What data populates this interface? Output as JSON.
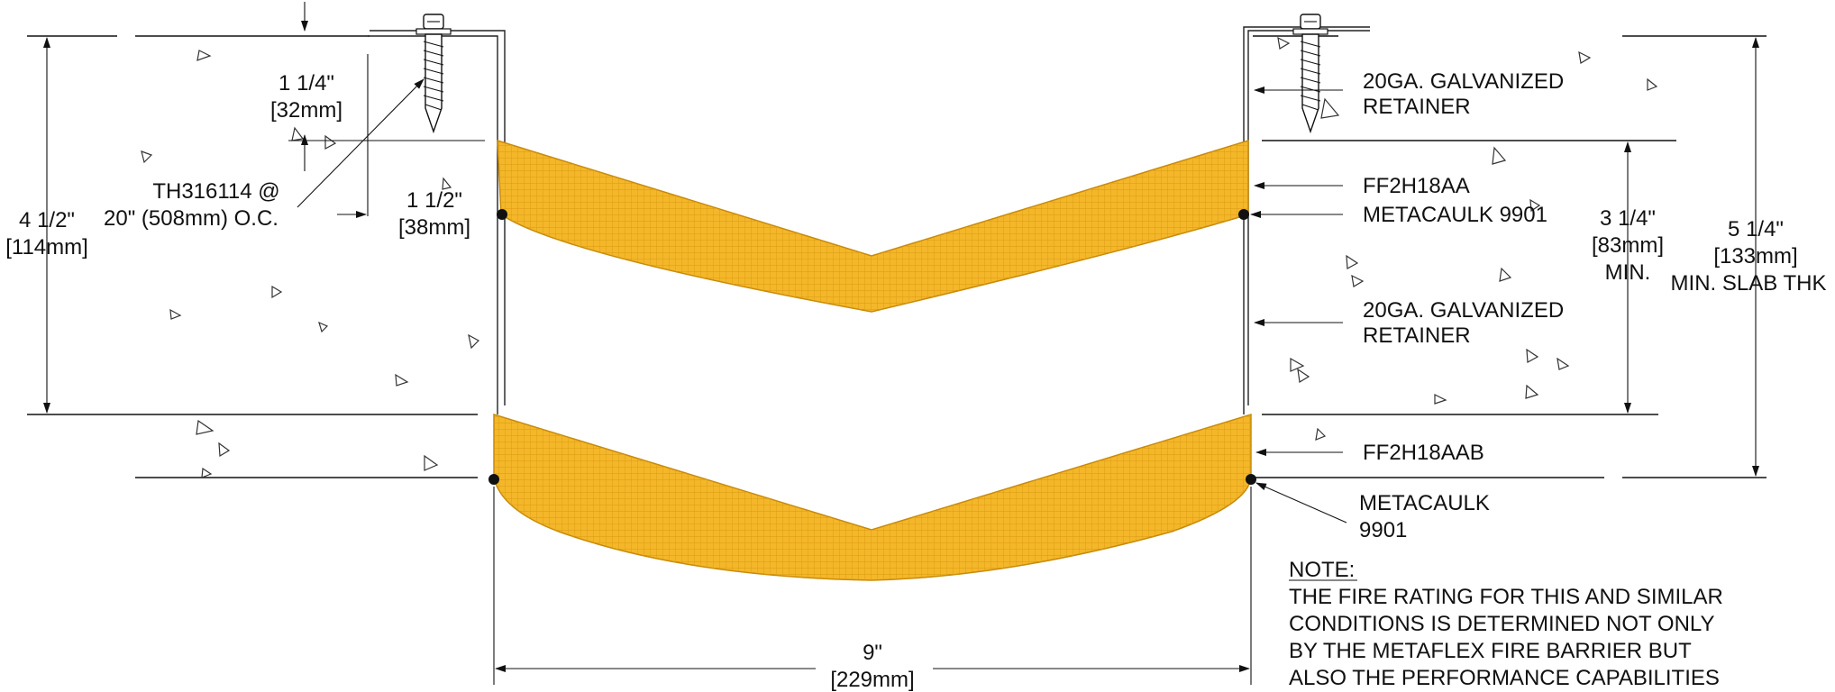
{
  "colors": {
    "barrier_fill": "#F5B72A",
    "barrier_mesh": "#D99A10",
    "barrier_edge": "#C88A08",
    "line": "#111111",
    "caulk_dot": "#111111"
  },
  "dimensions": {
    "screw_embed": {
      "fraction": "1 1/4\"",
      "metric": "[32mm]"
    },
    "retainer_leg": {
      "fraction": "1 1/2\"",
      "metric": "[38mm]"
    },
    "left_slab": {
      "fraction": "4 1/2\"",
      "metric": "[114mm]"
    },
    "gap": {
      "fraction": "9\"",
      "metric": "[229mm]"
    },
    "min_depth": {
      "fraction": "3 1/4\"",
      "metric": "[83mm]",
      "note": "MIN."
    },
    "slab_thk": {
      "fraction": "5 1/4\"",
      "metric": "[133mm]",
      "note": "MIN. SLAB THK"
    }
  },
  "callouts": {
    "fastener": {
      "line1": "TH316114 @",
      "line2": "20\" (508mm) O.C."
    },
    "retainer_top": {
      "line1": "20GA. GALVANIZED",
      "line2": "RETAINER"
    },
    "upper_barrier": "FF2H18AA",
    "upper_caulk": "METACAULK 9901",
    "retainer_mid": {
      "line1": "20GA. GALVANIZED",
      "line2": "RETAINER"
    },
    "lower_barrier": "FF2H18AAB",
    "lower_caulk": {
      "line1": "METACAULK",
      "line2": "9901"
    }
  },
  "note": {
    "heading": "NOTE:",
    "lines": [
      "THE FIRE RATING FOR THIS AND SIMILAR",
      "CONDITIONS IS DETERMINED NOT ONLY",
      "BY THE METAFLEX FIRE BARRIER BUT",
      "ALSO THE PERFORMANCE CAPABILITIES"
    ]
  }
}
